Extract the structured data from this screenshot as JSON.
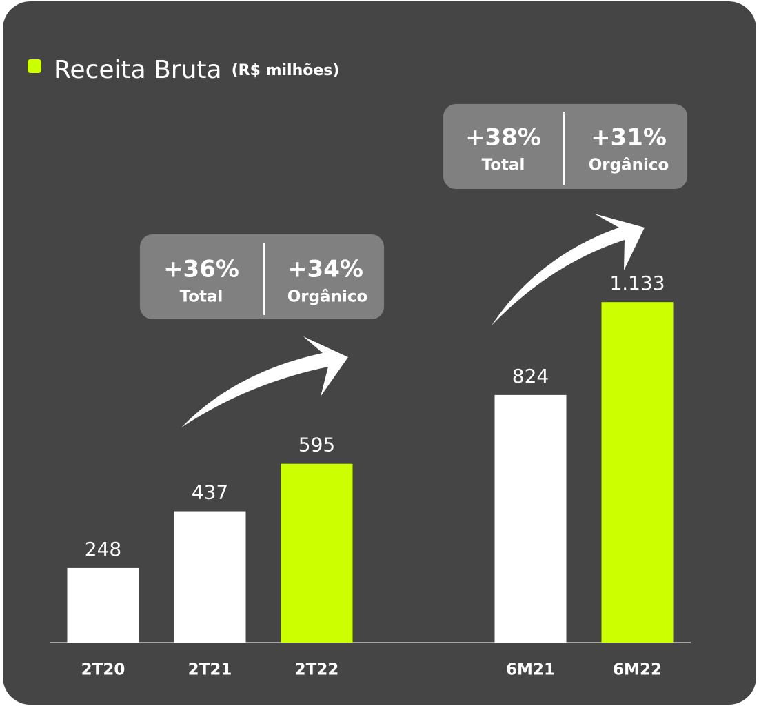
{
  "chart_data": {
    "type": "bar",
    "title": "Receita Bruta",
    "subtitle": "(R$ milhões)",
    "categories": [
      "2T20",
      "2T21",
      "2T22",
      null,
      "6M21",
      "6M22"
    ],
    "values": [
      248,
      437,
      595,
      null,
      824,
      1133
    ],
    "value_labels": [
      "248",
      "437",
      "595",
      null,
      "824",
      "1.133"
    ],
    "colors": [
      "#ffffff",
      "#ffffff",
      "#ccff00",
      null,
      "#ffffff",
      "#ccff00"
    ],
    "ylim": [
      0,
      1200
    ],
    "annotations": [
      {
        "total": "+36%",
        "total_label": "Total",
        "organic": "+34%",
        "organic_label": "Orgânico"
      },
      {
        "total": "+38%",
        "total_label": "Total",
        "organic": "+31%",
        "organic_label": "Orgânico"
      }
    ]
  }
}
